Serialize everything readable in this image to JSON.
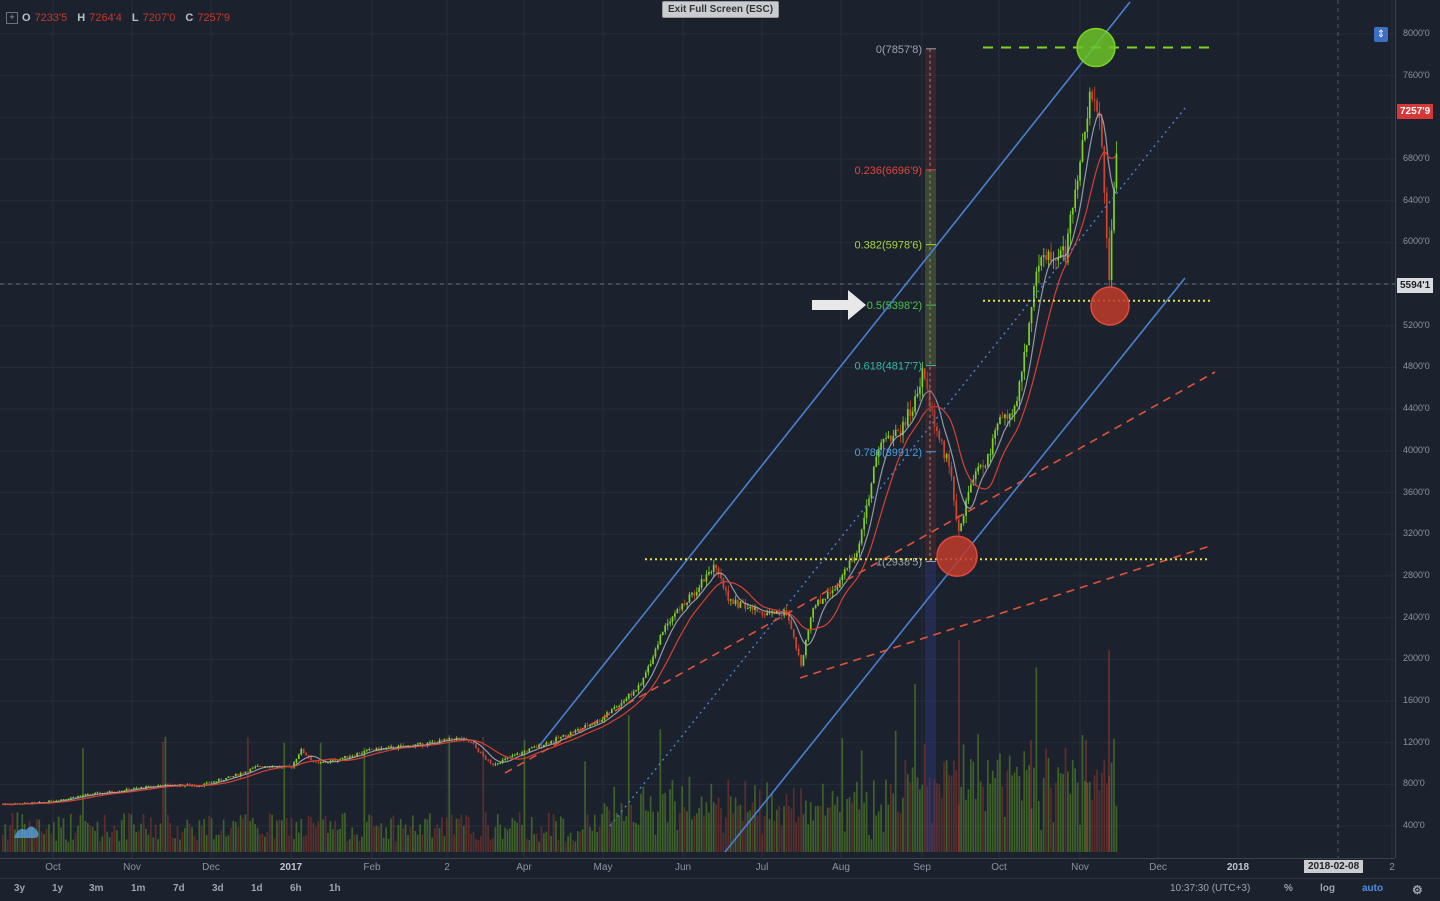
{
  "toolbar_top": {
    "ohlc": [
      {
        "label": "O",
        "value": "7233'5"
      },
      {
        "label": "H",
        "value": "7264'4"
      },
      {
        "label": "L",
        "value": "7207'0"
      },
      {
        "label": "C",
        "value": "7257'9"
      }
    ],
    "exit_button": "Exit Full Screen (ESC)"
  },
  "price_axis": {
    "labels": [
      "8000'0",
      "7600'0",
      "7200'0",
      "6800'0",
      "6400'0",
      "6000'0",
      "5600'0",
      "5200'0",
      "4800'0",
      "4400'0",
      "4000'0",
      "3600'0",
      "3200'0",
      "2800'0",
      "2400'0",
      "2000'0",
      "1600'0",
      "1200'0",
      "800'0",
      "400'0"
    ],
    "last_price_tag": "7257'9",
    "cursor_price_tag": "5594'1"
  },
  "time_axis": {
    "labels": [
      "Oct",
      "Nov",
      "Dec",
      "2017",
      "Feb",
      "2",
      "Apr",
      "May",
      "Jun",
      "Jul",
      "Aug",
      "Sep",
      "Oct",
      "Nov",
      "Dec",
      "2018",
      "2"
    ],
    "cursor_date_tag": "2018-02-08"
  },
  "bottom_toolbar": {
    "ranges": [
      "3y",
      "1y",
      "3m",
      "1m",
      "7d",
      "3d",
      "1d",
      "6h",
      "1h"
    ],
    "clock": "10:37:30 (UTC+3)",
    "percent": "%",
    "log": "log",
    "auto": "auto"
  },
  "chart_data": {
    "type": "candlestick",
    "title": "",
    "ylim": [
      0,
      8300
    ],
    "grid": true,
    "x_categories": [
      "Oct",
      "Nov",
      "Dec",
      "2017",
      "Feb",
      "2",
      "Apr",
      "May",
      "Jun",
      "Jul",
      "Aug",
      "Sep",
      "Oct",
      "Nov"
    ],
    "close_approx": [
      610,
      730,
      900,
      1000,
      1190,
      1050,
      1080,
      1350,
      2400,
      2500,
      2700,
      4700,
      4400,
      7258
    ],
    "fib_levels": [
      {
        "label": "0(7857'8)",
        "ratio": 0,
        "price": 7857.8,
        "color": "#9aa3b0"
      },
      {
        "label": "0.236(6696'9)",
        "ratio": 0.236,
        "price": 6696.9,
        "color": "#e0453a"
      },
      {
        "label": "0.382(5978'6)",
        "ratio": 0.382,
        "price": 5978.6,
        "color": "#a6d43a"
      },
      {
        "label": "0.5(5398'2)",
        "ratio": 0.5,
        "price": 5398.2,
        "color": "#4cc04c"
      },
      {
        "label": "0.618(4817'7)",
        "ratio": 0.618,
        "price": 4817.7,
        "color": "#35b8a6"
      },
      {
        "label": "0.786(3991'2)",
        "ratio": 0.786,
        "price": 3991.2,
        "color": "#4a9de0"
      },
      {
        "label": "1(2938'5)",
        "ratio": 1,
        "price": 2938.5,
        "color": "#9aa3b0"
      }
    ],
    "horizontal_levels": [
      {
        "price": 7870,
        "color": "#7ed321",
        "style": "dashed"
      },
      {
        "price": 5440,
        "color": "#e6e33a",
        "style": "dotted"
      },
      {
        "price": 2960,
        "color": "#e6e33a",
        "style": "dotted"
      }
    ],
    "markers": [
      {
        "kind": "top",
        "price": 7870,
        "color": "#6cc428"
      },
      {
        "kind": "support",
        "price": 5400,
        "color": "#c0392b"
      },
      {
        "kind": "support",
        "price": 2960,
        "color": "#c0392b"
      }
    ],
    "colors": {
      "up": "#7ed321",
      "down": "#d0452f",
      "channel": "#4a7fd6",
      "trend": "#e0523a",
      "ma_fast": "#b0b8c4",
      "ma_slow": "#d64032"
    }
  }
}
